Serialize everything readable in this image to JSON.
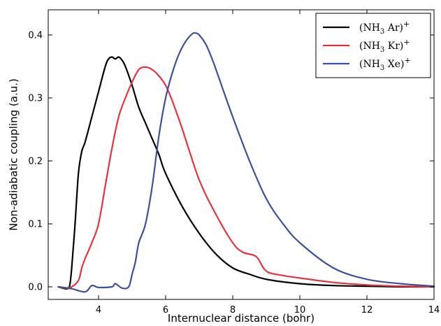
{
  "chart_data": {
    "type": "line",
    "xlabel": "Internuclear distance (bohr)",
    "ylabel": "Non-adiabatic coupling (a.u.)",
    "xlim": [
      2.5,
      14
    ],
    "ylim": [
      -0.02,
      0.44
    ],
    "xticks": [
      4,
      6,
      8,
      10,
      12,
      14
    ],
    "yticks": [
      0.0,
      0.1,
      0.2,
      0.3,
      0.4
    ],
    "xtick_labels": [
      "4",
      "6",
      "8",
      "10",
      "12",
      "14"
    ],
    "ytick_labels": [
      "0.0",
      "0.1",
      "0.2",
      "0.3",
      "0.4"
    ],
    "grid": false,
    "legend_position": "top-right",
    "series": [
      {
        "name_parts": [
          "(NH",
          "3",
          " Ar)",
          "+"
        ],
        "color": "#000000",
        "x": [
          2.8,
          3.0,
          3.1,
          3.15,
          3.2,
          3.3,
          3.4,
          3.5,
          3.6,
          3.8,
          4.0,
          4.2,
          4.3,
          4.4,
          4.5,
          4.6,
          4.7,
          4.8,
          5.0,
          5.2,
          5.4,
          5.6,
          5.8,
          6.0,
          6.5,
          7.0,
          7.5,
          8.0,
          8.5,
          9.0,
          10.0,
          11.0,
          12.0,
          13.0,
          14.0
        ],
        "y": [
          0.0,
          -0.003,
          -0.002,
          0.005,
          0.03,
          0.1,
          0.18,
          0.215,
          0.23,
          0.27,
          0.31,
          0.35,
          0.362,
          0.365,
          0.362,
          0.365,
          0.36,
          0.35,
          0.32,
          0.285,
          0.26,
          0.235,
          0.21,
          0.18,
          0.127,
          0.085,
          0.052,
          0.03,
          0.02,
          0.012,
          0.005,
          0.002,
          0.001,
          0.0,
          0.0
        ]
      },
      {
        "name_parts": [
          "(NH",
          "3",
          " Kr)",
          "+"
        ],
        "color": "#e8333c",
        "x": [
          2.8,
          3.0,
          3.2,
          3.4,
          3.5,
          3.6,
          3.8,
          4.0,
          4.2,
          4.4,
          4.6,
          4.8,
          5.0,
          5.2,
          5.4,
          5.6,
          5.8,
          6.0,
          6.2,
          6.5,
          7.0,
          7.5,
          8.0,
          8.3,
          8.7,
          9.0,
          9.5,
          10.0,
          11.0,
          12.0,
          13.0,
          14.0
        ],
        "y": [
          0.0,
          -0.002,
          0.0,
          0.01,
          0.03,
          0.045,
          0.07,
          0.1,
          0.16,
          0.22,
          0.27,
          0.3,
          0.325,
          0.345,
          0.349,
          0.345,
          0.335,
          0.32,
          0.295,
          0.25,
          0.17,
          0.115,
          0.07,
          0.055,
          0.048,
          0.025,
          0.018,
          0.014,
          0.007,
          0.003,
          0.001,
          0.0
        ]
      },
      {
        "name_parts": [
          "(NH",
          "3",
          " Xe)",
          "+"
        ],
        "color": "#3b4fa3",
        "x": [
          2.8,
          3.2,
          3.6,
          3.8,
          4.0,
          4.4,
          4.5,
          4.7,
          4.9,
          5.0,
          5.1,
          5.2,
          5.4,
          5.6,
          5.8,
          6.0,
          6.2,
          6.4,
          6.6,
          6.8,
          6.9,
          7.0,
          7.2,
          7.4,
          7.6,
          8.0,
          8.5,
          9.0,
          9.5,
          10.0,
          11.0,
          12.0,
          13.0,
          14.0
        ],
        "y": [
          0.0,
          -0.003,
          -0.008,
          0.002,
          -0.001,
          0.0,
          0.005,
          -0.002,
          0.0,
          0.02,
          0.04,
          0.07,
          0.1,
          0.16,
          0.24,
          0.3,
          0.34,
          0.37,
          0.39,
          0.402,
          0.403,
          0.4,
          0.385,
          0.36,
          0.33,
          0.27,
          0.2,
          0.14,
          0.1,
          0.07,
          0.03,
          0.012,
          0.005,
          0.001
        ]
      }
    ]
  }
}
